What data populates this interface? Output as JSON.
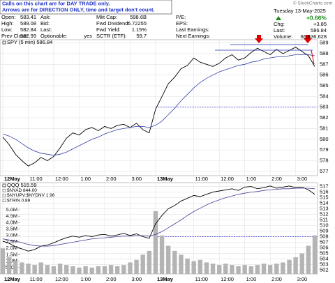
{
  "header": {
    "notice": [
      "Calls on this chart are for DAY TRADE only.",
      "Arrows are for DIRECTION ONLY, time and target don't count."
    ],
    "copyright": "© StockCharts.com",
    "columns": [
      [
        {
          "label": "Open:",
          "value": "583.41"
        },
        {
          "label": "High:",
          "value": "589.08"
        },
        {
          "label": "Low:",
          "value": "582.84"
        },
        {
          "label": "Prev Close:",
          "value": "582.99"
        }
      ],
      [
        {
          "label": "Ask:"
        },
        {
          "label": "Bid:"
        },
        {
          "label": "Last:"
        },
        {
          "label": "Optionable:",
          "value": "yes"
        }
      ],
      [
        {
          "label": "Mkt Cap:",
          "value": "598.6B"
        },
        {
          "label": "Fwd Dividend:",
          "value": "6.72255"
        },
        {
          "label": "Fwd Yield:",
          "value": "1.15%"
        },
        {
          "label": "SCTR (ETF):",
          "value": "59.7"
        }
      ],
      [
        {
          "label": "P/E:"
        },
        {
          "label": "EPS:"
        },
        {
          "label": "Last Earnings:"
        },
        {
          "label": "Next Earnings:"
        }
      ]
    ],
    "date": "Tuesday 13-May-2025",
    "change_pct": "+0.66%",
    "quote": [
      {
        "label": "Chg:",
        "value": "+3.85"
      },
      {
        "label": "Last:",
        "value": "586.84"
      },
      {
        "label": "Volume:",
        "value": "66,636,628"
      }
    ]
  },
  "chart_data": [
    {
      "type": "line",
      "categories": [
        "12May",
        null,
        null,
        null,
        "11:00",
        null,
        null,
        null,
        "12:00",
        null,
        null,
        null,
        "1:00",
        null,
        null,
        null,
        "2:00",
        null,
        null,
        null,
        "3:00",
        null,
        null,
        null,
        "13May",
        null,
        null,
        null,
        null,
        null,
        "11:00",
        null,
        null,
        null,
        "12:00",
        null,
        null,
        null,
        "1:00",
        null,
        null,
        null,
        "2:00",
        null,
        null,
        null,
        "3:00",
        null,
        null,
        null
      ],
      "series": [
        {
          "name": "SPY (5 min) 586.84",
          "color": "#000000",
          "values": [
            580.2,
            579.5,
            578.6,
            578.0,
            577.5,
            577.8,
            578.3,
            578.0,
            578.4,
            579.2,
            580.1,
            580.6,
            580.4,
            580.9,
            581.1,
            580.8,
            581.2,
            581.0,
            581.3,
            581.4,
            581.1,
            581.5,
            580.9,
            580.6,
            582.8,
            584.0,
            585.2,
            585.8,
            586.6,
            586.9,
            587.6,
            587.2,
            587.0,
            586.8,
            587.1,
            587.6,
            587.9,
            587.4,
            587.6,
            588.1,
            588.5,
            588.2,
            587.9,
            588.4,
            588.0,
            588.3,
            588.6,
            588.2,
            587.8,
            586.8
          ]
        },
        {
          "color": "#2f3fa8",
          "values": [
            580.5,
            580.3,
            580.0,
            579.6,
            579.2,
            578.9,
            578.7,
            578.6,
            578.5,
            578.6,
            578.8,
            579.1,
            579.4,
            579.7,
            580.0,
            580.2,
            580.5,
            580.7,
            580.9,
            581.0,
            581.1,
            581.2,
            581.2,
            581.1,
            581.3,
            581.7,
            582.3,
            582.9,
            583.6,
            584.2,
            584.8,
            585.3,
            585.7,
            586.0,
            586.3,
            586.5,
            586.7,
            586.9,
            587.0,
            587.2,
            587.3,
            587.5,
            587.6,
            587.7,
            587.7,
            587.8,
            587.9,
            587.9,
            587.9,
            587.8
          ]
        }
      ],
      "hline": 583,
      "hline_color": "#3333cc",
      "ylim": [
        576.6,
        589.3
      ],
      "yticks": [
        577,
        578,
        579,
        580,
        581,
        582,
        583,
        584,
        585,
        586,
        587,
        588,
        589
      ],
      "grid": true
    },
    {
      "type": "line",
      "categories": [
        "12May",
        null,
        null,
        null,
        "11:00",
        null,
        null,
        null,
        "12:00",
        null,
        null,
        null,
        "1:00",
        null,
        null,
        null,
        "2:00",
        null,
        null,
        null,
        "3:00",
        null,
        null,
        null,
        "13May",
        null,
        null,
        null,
        null,
        null,
        "11:00",
        null,
        null,
        null,
        "12:00",
        null,
        null,
        null,
        "1:00",
        null,
        null,
        null,
        "2:00",
        null,
        null,
        null,
        "3:00",
        null,
        null,
        null
      ],
      "series": [
        {
          "type": "bar",
          "color": "#b4b4b4",
          "values": [
            2000000,
            1300000,
            1000000,
            900000,
            800000,
            700000,
            900000,
            700000,
            600000,
            800000,
            700000,
            600000,
            500000,
            600000,
            500000,
            600000,
            600000,
            700000,
            600000,
            700000,
            900000,
            1100000,
            1500000,
            1800000,
            4900000,
            3000000,
            2200000,
            1800000,
            1500000,
            1200000,
            1000000,
            1100000,
            900000,
            800000,
            700000,
            800000,
            700000,
            600000,
            700000,
            600000,
            700000,
            800000,
            700000,
            800000,
            900000,
            1100000,
            1300000,
            1600000,
            2200000,
            3000000
          ]
        },
        {
          "name": "QQQ 515.59",
          "color": "#000000",
          "axis": "y2",
          "values": [
            507.2,
            506.8,
            506.2,
            505.8,
            505.4,
            505.7,
            506.3,
            506.5,
            506.9,
            507.4,
            507.8,
            508.1,
            507.9,
            508.2,
            508.0,
            508.3,
            508.4,
            508.1,
            508.3,
            508.6,
            508.2,
            508.5,
            508.0,
            507.7,
            510.3,
            511.8,
            513.0,
            513.6,
            514.4,
            514.9,
            515.4,
            515.2,
            515.6,
            516.0,
            516.2,
            516.4,
            516.6,
            516.3,
            516.9,
            517.0,
            516.6,
            516.8,
            517.1,
            516.7,
            516.9,
            517.1,
            516.8,
            516.9,
            516.4,
            515.6
          ]
        },
        {
          "color": "#4a3a9a",
          "axis": "y2",
          "values": [
            507.6,
            507.4,
            507.2,
            506.9,
            506.6,
            506.4,
            506.3,
            506.3,
            506.4,
            506.6,
            506.8,
            507.0,
            507.2,
            507.4,
            507.6,
            507.7,
            507.8,
            507.9,
            508.0,
            508.1,
            508.1,
            508.2,
            508.2,
            508.1,
            508.4,
            508.9,
            509.6,
            510.3,
            511.0,
            511.8,
            512.5,
            513.1,
            513.7,
            514.2,
            514.6,
            515.0,
            515.3,
            515.6,
            515.8,
            516.0,
            516.1,
            516.3,
            516.4,
            516.5,
            516.6,
            516.6,
            516.7,
            516.7,
            516.7,
            516.6
          ]
        }
      ],
      "legend_extra": [
        "$NYAD 844.00",
        "$NYUPV:$NYDNV 1.96",
        "$TRIN 0.89"
      ],
      "hline": 508,
      "hline_color": "#3333cc",
      "ylim": [
        0,
        7120000
      ],
      "yticks": [
        {
          "value": 500000,
          "label": "500K"
        },
        {
          "value": 1000000,
          "label": "1.0M"
        },
        {
          "value": 1500000,
          "label": "1.5M"
        },
        {
          "value": 2000000,
          "label": "2.0M"
        },
        {
          "value": 2500000,
          "label": "2.5M"
        },
        {
          "value": 3000000,
          "label": "3.0M"
        },
        {
          "value": 3500000,
          "label": "3.5M"
        },
        {
          "value": 4000000,
          "label": "4.0M"
        },
        {
          "value": 4500000,
          "label": "4.5M"
        },
        {
          "value": 5000000,
          "label": "5.0M"
        }
      ],
      "y2lim": [
        501.3,
        517.7
      ],
      "y2ticks": [
        502,
        503,
        504,
        505,
        506,
        507,
        508,
        509,
        510,
        511,
        512,
        513,
        514,
        515,
        516,
        517
      ],
      "grid": true
    }
  ]
}
